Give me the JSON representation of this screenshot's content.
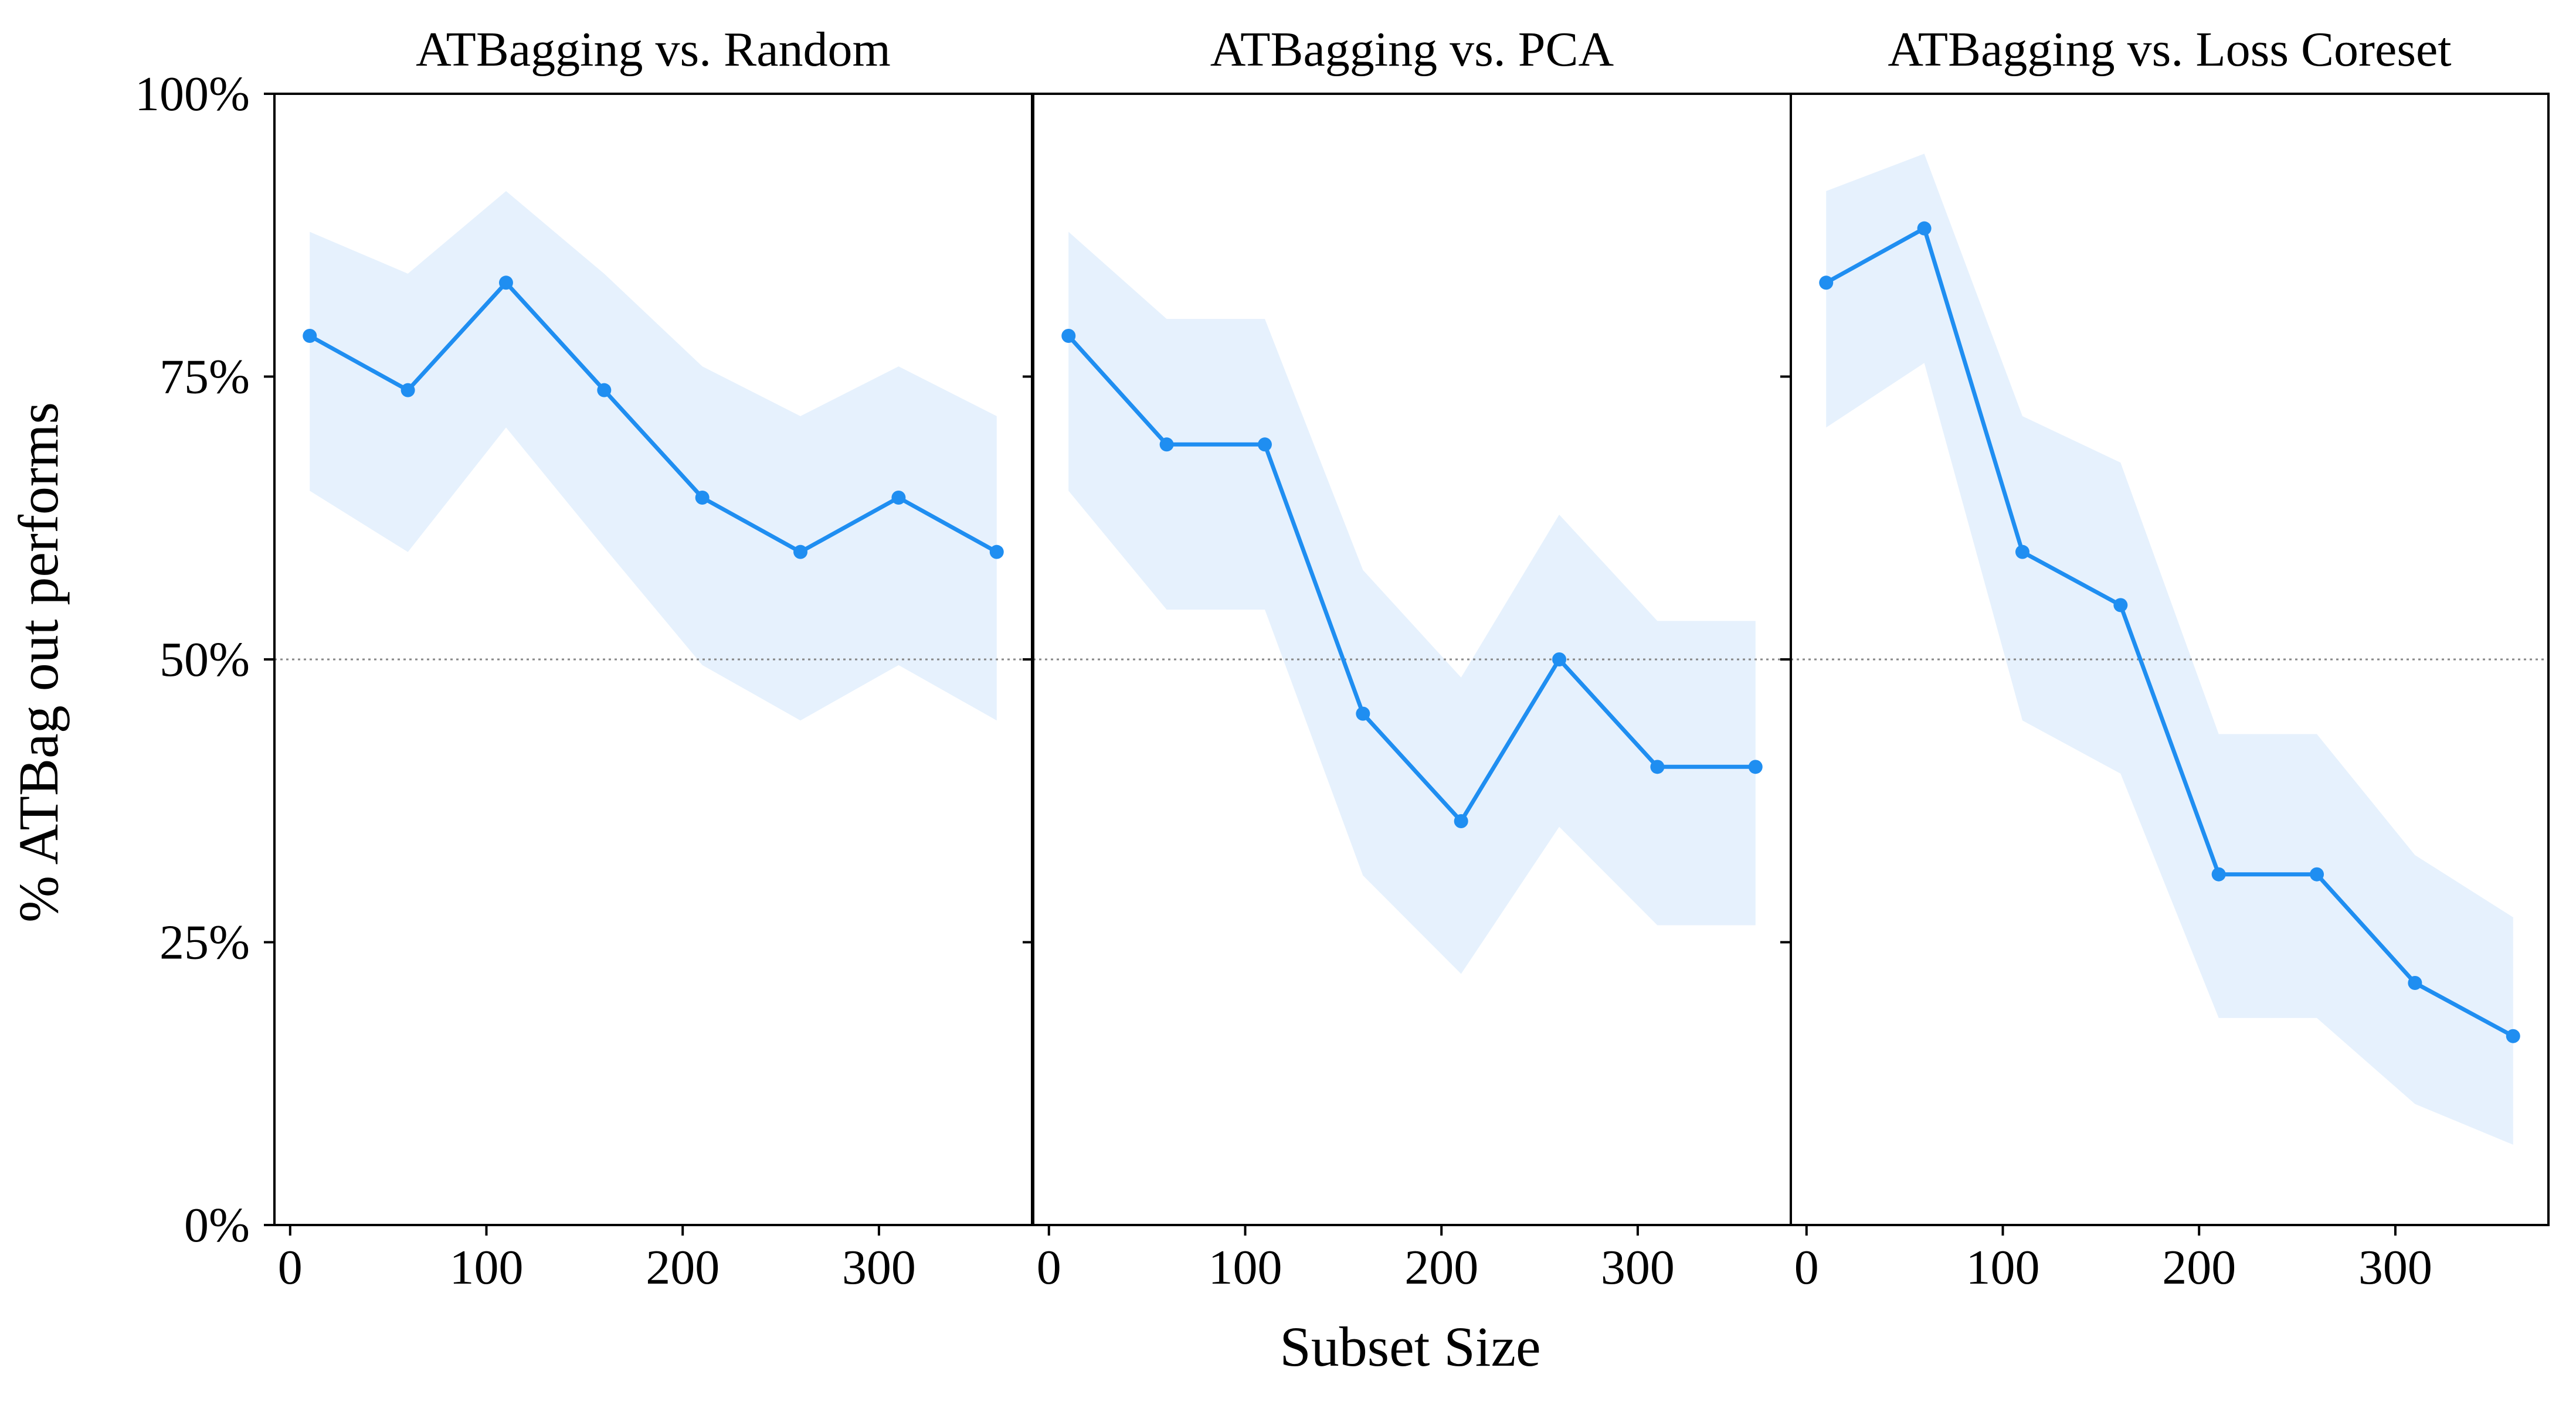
{
  "figure": {
    "xlabel": "Subset Size",
    "ylabel": "% ATBag out performs",
    "line_color": "#1f8ef1",
    "band_color": "#e6f1fd",
    "reference_line_color": "#888888"
  },
  "chart_data": [
    {
      "type": "line",
      "title": "ATBagging vs. Random",
      "x": [
        10,
        60,
        110,
        160,
        210,
        260,
        310,
        360
      ],
      "values": [
        78.6,
        73.8,
        83.3,
        73.8,
        64.3,
        59.5,
        64.3,
        59.5
      ],
      "lower": [
        64.9,
        59.5,
        70.5,
        59.9,
        49.5,
        44.6,
        49.5,
        44.6
      ],
      "upper": [
        87.8,
        84.1,
        91.4,
        84.1,
        75.9,
        71.5,
        75.9,
        71.5
      ],
      "reference_y": 50,
      "xlim": [
        -8,
        378
      ],
      "ylim": [
        0,
        100
      ],
      "xticks": [
        0,
        100,
        200,
        300
      ],
      "yticks": [
        0,
        25,
        50,
        75,
        100
      ],
      "ytick_labels": [
        "0%",
        "25%",
        "50%",
        "75%",
        "100%"
      ]
    },
    {
      "type": "line",
      "title": "ATBagging vs. PCA",
      "x": [
        10,
        60,
        110,
        160,
        210,
        260,
        310,
        360
      ],
      "values": [
        78.6,
        69.0,
        69.0,
        45.2,
        35.7,
        50.0,
        40.5,
        40.5
      ],
      "lower": [
        64.9,
        54.4,
        54.4,
        30.9,
        22.2,
        35.2,
        26.5,
        26.5
      ],
      "upper": [
        87.8,
        80.1,
        80.1,
        57.9,
        48.4,
        62.8,
        53.4,
        53.4
      ],
      "reference_y": 50,
      "xlim": [
        -8,
        378
      ],
      "ylim": [
        0,
        100
      ],
      "xticks": [
        0,
        100,
        200,
        300
      ]
    },
    {
      "type": "line",
      "title": "ATBagging vs. Loss Coreset",
      "x": [
        10,
        60,
        110,
        160,
        210,
        260,
        310,
        360
      ],
      "values": [
        83.3,
        88.1,
        59.5,
        54.8,
        31.0,
        31.0,
        21.4,
        16.7
      ],
      "lower": [
        70.5,
        76.2,
        44.6,
        39.9,
        18.3,
        18.3,
        10.7,
        7.1
      ],
      "upper": [
        91.4,
        94.7,
        71.5,
        67.4,
        43.4,
        43.4,
        32.7,
        27.2
      ],
      "reference_y": 50,
      "xlim": [
        -8,
        378
      ],
      "ylim": [
        0,
        100
      ],
      "xticks": [
        0,
        100,
        200,
        300
      ]
    }
  ]
}
